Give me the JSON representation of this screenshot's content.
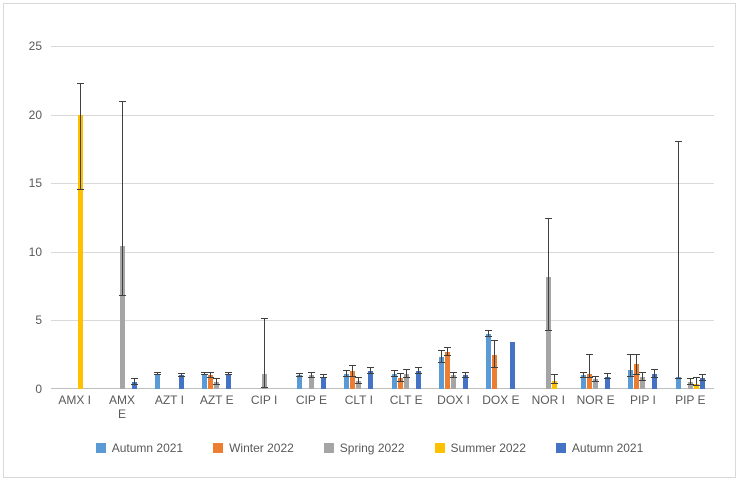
{
  "chart_data": {
    "type": "bar",
    "title": "",
    "xlabel": "",
    "ylabel": "",
    "ylim": [
      0,
      25
    ],
    "ytick_step": 5,
    "grid": true,
    "legend_position": "bottom",
    "categories": [
      "AMX I",
      "AMX\nE",
      "AZT I",
      "AZT E",
      "CIP I",
      "CIP E",
      "CLT I",
      "CLT E",
      "DOX I",
      "DOX E",
      "NOR I",
      "NOR E",
      "PIP I",
      "PIP E"
    ],
    "series": [
      {
        "name": "Autumn 2021",
        "color": "#5b9bd5",
        "values": [
          0,
          0,
          1.1,
          1.1,
          0,
          1.0,
          1.1,
          1.1,
          2.3,
          4.0,
          0,
          1.0,
          1.4,
          0.9
        ],
        "err_low": [
          0,
          0,
          0.1,
          0.1,
          0,
          0.1,
          0.2,
          0.2,
          0.4,
          0.2,
          0,
          0.2,
          0.5,
          0.2
        ],
        "err_high": [
          0,
          0,
          0.1,
          0.1,
          0,
          0.1,
          0.2,
          0.2,
          0.5,
          0.2,
          0,
          0.2,
          1.1,
          17.1
        ]
      },
      {
        "name": "Winter 2022",
        "color": "#ed7d31",
        "values": [
          0,
          0,
          0,
          1.0,
          0,
          0,
          1.3,
          0.8,
          2.7,
          2.5,
          0,
          1.1,
          1.8,
          0
        ],
        "err_low": [
          0,
          0,
          0,
          0.2,
          0,
          0,
          0.4,
          0.3,
          0.3,
          1.0,
          0,
          0.3,
          0.8,
          0
        ],
        "err_high": [
          0,
          0,
          0,
          0.2,
          0,
          0,
          0.4,
          0.3,
          0.3,
          1.0,
          0,
          1.4,
          0.7,
          0
        ]
      },
      {
        "name": "Spring 2022",
        "color": "#a5a5a5",
        "values": [
          0,
          10.4,
          0,
          0.5,
          1.1,
          1.0,
          0.6,
          1.1,
          1.0,
          0,
          8.2,
          0.7,
          0.9,
          0.5
        ],
        "err_low": [
          0,
          3.6,
          0,
          0.2,
          1.0,
          0.2,
          0.2,
          0.3,
          0.2,
          0,
          4.0,
          0.2,
          0.3,
          0.2
        ],
        "err_high": [
          0,
          10.5,
          0,
          0.2,
          4.0,
          0.2,
          0.2,
          0.3,
          0.2,
          0,
          4.2,
          0.2,
          0.3,
          0.2
        ]
      },
      {
        "name": "Summer 2022",
        "color": "#ffc000",
        "values": [
          20,
          0,
          0,
          0,
          0,
          0,
          0,
          0,
          0,
          0,
          0.6,
          0,
          0,
          0.4
        ],
        "err_low": [
          5.5,
          0,
          0,
          0,
          0,
          0,
          0,
          0,
          0,
          0,
          0.2,
          0,
          0,
          0.2
        ],
        "err_high": [
          2.2,
          0,
          0,
          0,
          0,
          0,
          0,
          0,
          0,
          0,
          0.4,
          0,
          0,
          0.4
        ]
      },
      {
        "name": "Autumn 2021",
        "color": "#4472c4",
        "values": [
          0,
          0.5,
          1.0,
          1.1,
          0,
          0.9,
          1.3,
          1.3,
          1.0,
          3.4,
          0,
          0.9,
          1.1,
          0.8
        ],
        "err_low": [
          0,
          0.2,
          0.1,
          0.1,
          0,
          0.1,
          0.2,
          0.2,
          0.2,
          0,
          0,
          0.2,
          0.3,
          0.2
        ],
        "err_high": [
          0,
          0.2,
          0.1,
          0.1,
          0,
          0.1,
          0.2,
          0.2,
          0.2,
          0,
          0,
          0.2,
          0.3,
          0.2
        ]
      }
    ]
  }
}
